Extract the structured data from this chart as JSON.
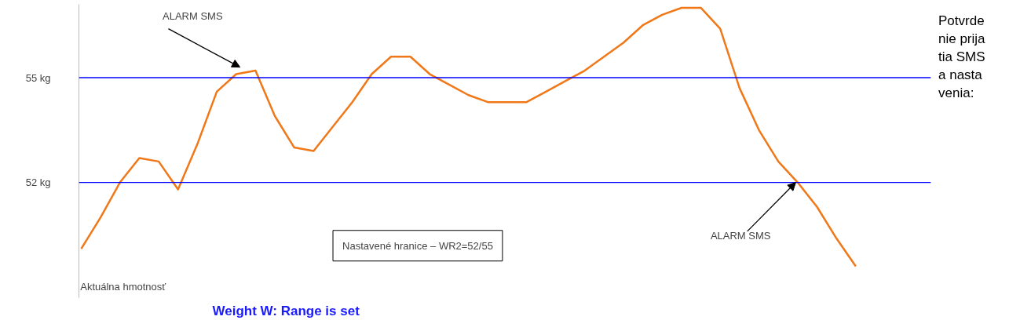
{
  "chart_data": {
    "type": "line",
    "title": "Weight W: Range is set",
    "categories": [
      null,
      null,
      null,
      null,
      null,
      null,
      null,
      null,
      null,
      null,
      null,
      null,
      null,
      null,
      null,
      null,
      null,
      null,
      null,
      null,
      null,
      null,
      null,
      null,
      null,
      null,
      null,
      null,
      null,
      null,
      null,
      null,
      null,
      null,
      null,
      null,
      null,
      null,
      null,
      null,
      null
    ],
    "series": [
      {
        "color": "#f07818",
        "values": [
          50.1,
          51.0,
          52.0,
          52.7,
          52.6,
          51.8,
          53.1,
          54.6,
          55.1,
          55.2,
          53.9,
          53.0,
          52.9,
          53.6,
          54.3,
          55.1,
          55.6,
          55.6,
          55.1,
          54.8,
          54.5,
          54.3,
          54.3,
          54.3,
          54.6,
          54.9,
          55.2,
          55.6,
          56.0,
          56.5,
          56.8,
          57.0,
          57.0,
          56.4,
          54.7,
          53.5,
          52.6,
          52.0,
          51.3,
          50.4,
          49.6
        ]
      }
    ],
    "ylim": [
      48.7,
      57.1
    ],
    "yticks": [
      {
        "value": 52,
        "label": "52 kg"
      },
      {
        "value": 55,
        "label": "55 kg"
      }
    ],
    "ref_lines": [
      {
        "axis": "y",
        "value": 55,
        "color": "#0000ff"
      },
      {
        "axis": "y",
        "value": 52,
        "color": "#0000ff"
      }
    ],
    "annotations": [
      "ALARM SMS",
      "ALARM SMS",
      "Aktuálna hmotnosť",
      "Nastavené hranice – WR2=52/55",
      "Potvrdenie prijatia SMS a nastavenia:"
    ]
  }
}
